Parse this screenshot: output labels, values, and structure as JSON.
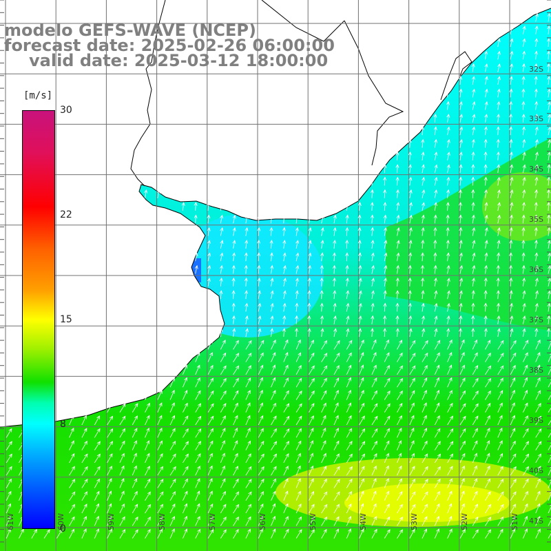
{
  "title": {
    "line1": "modelo GEFS-WAVE (NCEP)",
    "line2": "forecast date: 2025-02-26 06:00:00",
    "line3": "valid date: 2025-03-12 18:00:00"
  },
  "colorbar": {
    "unit": "[m/s]",
    "ticks": [
      "30",
      "22",
      "15",
      "8",
      "0"
    ],
    "min": 0,
    "max": 30,
    "colors": [
      "#0000ff",
      "#0060ff",
      "#00b0ff",
      "#00ffff",
      "#00ffb0",
      "#10e000",
      "#a0f000",
      "#ffff00",
      "#ffa000",
      "#ff6000",
      "#ff0000",
      "#e0105a",
      "#c8127c"
    ]
  },
  "map": {
    "land_color": "#ffffff",
    "grid_color": "#707070",
    "vector_color": "#ffffff",
    "lat_labels": [
      "32S",
      "33S",
      "34S",
      "35S",
      "36S",
      "37S",
      "38S",
      "39S",
      "40S",
      "41S"
    ],
    "lon_labels": [
      "61W",
      "60W",
      "59W",
      "58W",
      "57W",
      "56W",
      "55W",
      "54W",
      "53W",
      "52W",
      "51W"
    ]
  }
}
